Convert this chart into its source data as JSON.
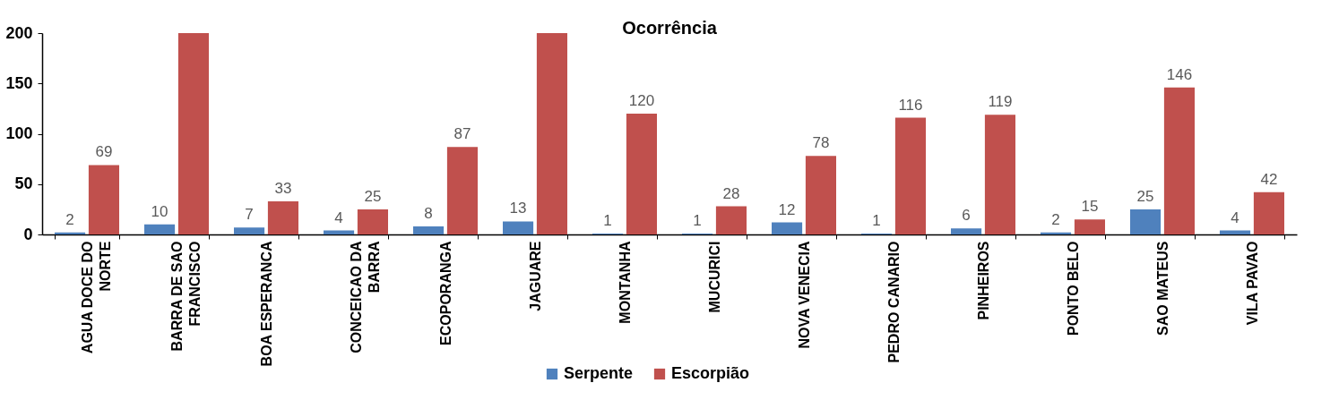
{
  "chart_data": {
    "type": "bar",
    "title": "Ocorrência",
    "categories": [
      "AGUA DOCE DO NORTE",
      "BARRA DE SAO FRANCISCO",
      "BOA ESPERANCA",
      "CONCEICAO DA BARRA",
      "ECOPORANGA",
      "JAGUARE",
      "MONTANHA",
      "MUCURICI",
      "NOVA VENECIA",
      "PEDRO CANARIO",
      "PINHEIROS",
      "PONTO BELO",
      "SAO MATEUS",
      "VILA PAVAO"
    ],
    "series": [
      {
        "name": "Serpente",
        "color": "#4f81bd",
        "values": [
          2,
          10,
          7,
          4,
          8,
          13,
          1,
          1,
          12,
          1,
          6,
          2,
          25,
          4
        ],
        "value_labels": [
          "2",
          "10",
          "7",
          "4",
          "8",
          "13",
          "1",
          "1",
          "12",
          "1",
          "6",
          "2",
          "25",
          "4"
        ]
      },
      {
        "name": "Escorpião",
        "color": "#c0504d",
        "values": [
          69,
          200,
          33,
          25,
          87,
          200,
          120,
          28,
          78,
          116,
          119,
          15,
          146,
          42
        ],
        "value_labels": [
          "69",
          null,
          "33",
          "25",
          "87",
          null,
          "120",
          "28",
          "78",
          "116",
          "119",
          "15",
          "146",
          "42"
        ]
      }
    ],
    "ylim": [
      0,
      200
    ],
    "yticks": [
      0,
      50,
      100,
      150,
      200
    ],
    "grid": false,
    "legend": "bottom"
  }
}
